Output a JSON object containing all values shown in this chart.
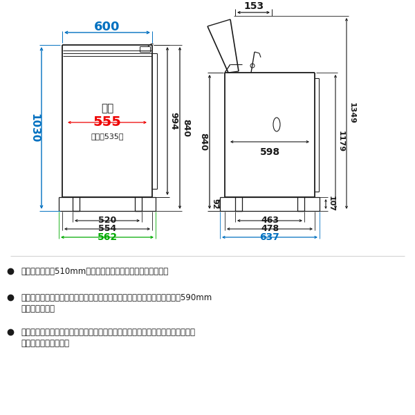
{
  "bg_color": "#ffffff",
  "line_color": "#1a1a1a",
  "blue_color": "#0070c0",
  "red_color": "#ee0000",
  "green_color": "#00aa00",
  "bullet1": "奖行（内寸）が510mmより大きな防水パンに設置できます。",
  "bullet2a": "防水パンに設置する場合は、本体後方の壁面から防水パン前部の内側まで590mm",
  "bullet2b": "以上必要です。",
  "bullet3a": "寸法図の青色は総外形寸法、赤色はボディ幅、緑色は左右の手掛け部を含むボデ",
  "bullet3b": "ィ幅を示しています。",
  "koumen": "後面",
  "zenmen": "（前面535）"
}
